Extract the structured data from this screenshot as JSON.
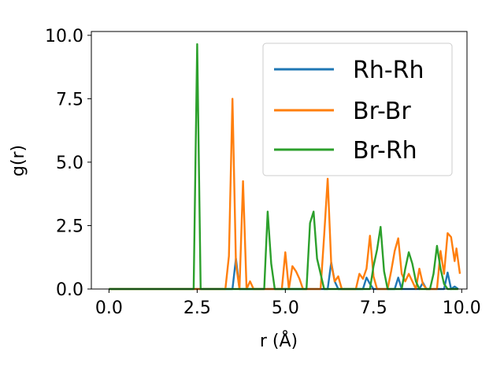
{
  "chart_data": {
    "type": "line",
    "title": "",
    "xlabel": "r (Å)",
    "ylabel": "g(r)",
    "xlim": [
      -0.5,
      10.15
    ],
    "ylim": [
      0,
      10.15
    ],
    "xticks": [
      "0.0",
      "2.5",
      "5.0",
      "7.5",
      "10.0"
    ],
    "yticks": [
      "0.0",
      "2.5",
      "5.0",
      "7.5",
      "10.0"
    ],
    "grid": false,
    "legend_position": "top-right",
    "series": [
      {
        "name": "Rh-Rh",
        "color": "#1f77b4",
        "points": [
          [
            0.0,
            0.0
          ],
          [
            3.5,
            0.0
          ],
          [
            3.6,
            1.2
          ],
          [
            3.7,
            0.0
          ],
          [
            6.2,
            0.0
          ],
          [
            6.3,
            1.05
          ],
          [
            6.4,
            0.3
          ],
          [
            6.5,
            0.0
          ],
          [
            7.2,
            0.0
          ],
          [
            7.3,
            0.45
          ],
          [
            7.4,
            0.2
          ],
          [
            7.5,
            0.0
          ],
          [
            8.1,
            0.0
          ],
          [
            8.2,
            0.45
          ],
          [
            8.3,
            0.0
          ],
          [
            8.8,
            0.0
          ],
          [
            8.9,
            0.25
          ],
          [
            9.0,
            0.0
          ],
          [
            9.5,
            0.0
          ],
          [
            9.6,
            0.65
          ],
          [
            9.7,
            0.0
          ],
          [
            9.8,
            0.1
          ],
          [
            9.9,
            0.0
          ]
        ]
      },
      {
        "name": "Br-Br",
        "color": "#ff7f0e",
        "points": [
          [
            0.0,
            0.0
          ],
          [
            3.3,
            0.0
          ],
          [
            3.4,
            1.3
          ],
          [
            3.5,
            7.5
          ],
          [
            3.6,
            1.0
          ],
          [
            3.7,
            0.0
          ],
          [
            3.8,
            4.25
          ],
          [
            3.9,
            0.0
          ],
          [
            4.0,
            0.3
          ],
          [
            4.1,
            0.0
          ],
          [
            4.9,
            0.0
          ],
          [
            5.0,
            1.45
          ],
          [
            5.1,
            0.0
          ],
          [
            5.2,
            0.9
          ],
          [
            5.3,
            0.7
          ],
          [
            5.4,
            0.4
          ],
          [
            5.5,
            0.0
          ],
          [
            6.0,
            0.0
          ],
          [
            6.1,
            2.1
          ],
          [
            6.2,
            4.35
          ],
          [
            6.3,
            1.0
          ],
          [
            6.4,
            0.3
          ],
          [
            6.5,
            0.5
          ],
          [
            6.6,
            0.0
          ],
          [
            7.0,
            0.0
          ],
          [
            7.1,
            0.6
          ],
          [
            7.2,
            0.4
          ],
          [
            7.3,
            0.8
          ],
          [
            7.4,
            2.1
          ],
          [
            7.5,
            0.5
          ],
          [
            7.6,
            0.0
          ],
          [
            7.9,
            0.0
          ],
          [
            8.0,
            0.7
          ],
          [
            8.1,
            1.5
          ],
          [
            8.2,
            2.0
          ],
          [
            8.3,
            0.6
          ],
          [
            8.4,
            0.3
          ],
          [
            8.5,
            0.6
          ],
          [
            8.6,
            0.3
          ],
          [
            8.7,
            0.0
          ],
          [
            8.8,
            0.8
          ],
          [
            8.9,
            0.2
          ],
          [
            9.0,
            0.0
          ],
          [
            9.3,
            0.0
          ],
          [
            9.4,
            1.5
          ],
          [
            9.5,
            0.6
          ],
          [
            9.6,
            2.2
          ],
          [
            9.7,
            2.05
          ],
          [
            9.8,
            1.1
          ],
          [
            9.85,
            1.6
          ],
          [
            9.95,
            0.6
          ]
        ]
      },
      {
        "name": "Br-Rh",
        "color": "#2ca02c",
        "points": [
          [
            0.0,
            0.0
          ],
          [
            2.4,
            0.0
          ],
          [
            2.5,
            9.65
          ],
          [
            2.6,
            0.0
          ],
          [
            4.4,
            0.0
          ],
          [
            4.5,
            3.05
          ],
          [
            4.6,
            1.0
          ],
          [
            4.7,
            0.0
          ],
          [
            5.6,
            0.0
          ],
          [
            5.7,
            2.6
          ],
          [
            5.8,
            3.05
          ],
          [
            5.9,
            1.2
          ],
          [
            6.0,
            0.6
          ],
          [
            6.1,
            0.0
          ],
          [
            7.4,
            0.0
          ],
          [
            7.5,
            0.9
          ],
          [
            7.6,
            1.55
          ],
          [
            7.7,
            2.45
          ],
          [
            7.8,
            0.7
          ],
          [
            7.9,
            0.0
          ],
          [
            8.3,
            0.0
          ],
          [
            8.4,
            0.8
          ],
          [
            8.5,
            1.45
          ],
          [
            8.6,
            1.0
          ],
          [
            8.7,
            0.3
          ],
          [
            8.8,
            0.0
          ],
          [
            9.1,
            0.0
          ],
          [
            9.2,
            0.6
          ],
          [
            9.3,
            1.7
          ],
          [
            9.4,
            0.8
          ],
          [
            9.5,
            0.2
          ],
          [
            9.6,
            0.0
          ],
          [
            9.9,
            0.0
          ]
        ]
      }
    ]
  }
}
